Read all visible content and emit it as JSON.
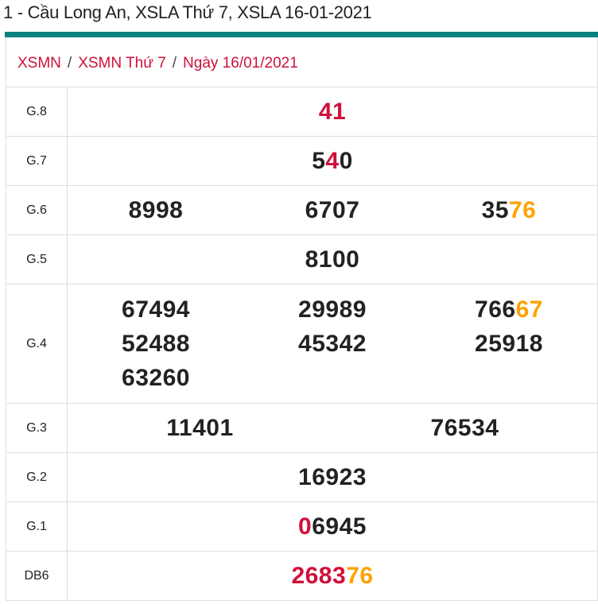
{
  "title": "1 - Cầu Long An, XSLA Thứ 7, XSLA 16-01-2021",
  "breadcrumb": [
    "XSMN",
    "XSMN Thứ 7",
    "Ngày 16/01/2021"
  ],
  "breadcrumb_separator": "/",
  "colors": {
    "teal": "#087f80",
    "red": "#d0103a",
    "orange": "#ffa200",
    "black": "#222222"
  },
  "rows": [
    {
      "label": "G.8",
      "columns": [
        [
          [
            {
              "text": "41",
              "color": "red"
            }
          ]
        ]
      ]
    },
    {
      "label": "G.7",
      "columns": [
        [
          [
            {
              "text": "5",
              "color": "black"
            },
            {
              "text": "4",
              "color": "red"
            },
            {
              "text": "0",
              "color": "black"
            }
          ]
        ]
      ]
    },
    {
      "label": "G.6",
      "columns": [
        [
          [
            {
              "text": "8998",
              "color": "black"
            }
          ]
        ],
        [
          [
            {
              "text": "6707",
              "color": "black"
            }
          ]
        ],
        [
          [
            {
              "text": "35",
              "color": "black"
            },
            {
              "text": "76",
              "color": "orange"
            }
          ]
        ]
      ]
    },
    {
      "label": "G.5",
      "columns": [
        [
          [
            {
              "text": "8100",
              "color": "black"
            }
          ]
        ]
      ]
    },
    {
      "label": "G.4",
      "columns": [
        [
          [
            {
              "text": "67494",
              "color": "black"
            }
          ],
          [
            {
              "text": "52488",
              "color": "black"
            }
          ],
          [
            {
              "text": "63260",
              "color": "black"
            }
          ]
        ],
        [
          [
            {
              "text": "29989",
              "color": "black"
            }
          ],
          [
            {
              "text": "45342",
              "color": "black"
            }
          ]
        ],
        [
          [
            {
              "text": "766",
              "color": "black"
            },
            {
              "text": "67",
              "color": "orange"
            }
          ],
          [
            {
              "text": "25918",
              "color": "black"
            }
          ]
        ]
      ]
    },
    {
      "label": "G.3",
      "columns": [
        [
          [
            {
              "text": "11401",
              "color": "black"
            }
          ]
        ],
        [
          [
            {
              "text": "76534",
              "color": "black"
            }
          ]
        ]
      ]
    },
    {
      "label": "G.2",
      "columns": [
        [
          [
            {
              "text": "16923",
              "color": "black"
            }
          ]
        ]
      ]
    },
    {
      "label": "G.1",
      "columns": [
        [
          [
            {
              "text": "0",
              "color": "red"
            },
            {
              "text": "6945",
              "color": "black"
            }
          ]
        ]
      ]
    },
    {
      "label": "DB6",
      "columns": [
        [
          [
            {
              "text": "2683",
              "color": "red"
            },
            {
              "text": "76",
              "color": "orange"
            }
          ]
        ]
      ]
    }
  ]
}
